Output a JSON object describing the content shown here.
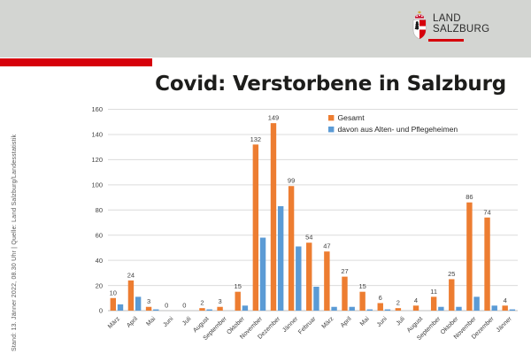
{
  "header": {
    "logo_line1": "LAND",
    "logo_line2": "SALZBURG",
    "band_color": "#d3d5d2",
    "accent_color": "#d6000b"
  },
  "title": "Covid: Verstorbene in Salzburg",
  "source_note": "Stand: 13. Jänner 2022, 08.30 Uhr | Quelle: Land Salzburg/Landesstatistik",
  "chart_data": {
    "type": "bar",
    "title": "",
    "xlabel": "",
    "ylabel": "",
    "ylim": [
      0,
      160
    ],
    "ytick_step": 20,
    "grid": true,
    "legend_position": "top-right",
    "categories": [
      "März",
      "April",
      "Mai",
      "Juni",
      "Juli",
      "August",
      "September",
      "Oktober",
      "November",
      "Dezember",
      "Jänner",
      "Februar",
      "März",
      "April",
      "Mai",
      "Juni",
      "Juli",
      "August",
      "September",
      "Oktober",
      "November",
      "Dezember",
      "Jänner"
    ],
    "series": [
      {
        "name": "Gesamt",
        "color": "#ED7D31",
        "data_labels": true,
        "values": [
          10,
          24,
          3,
          0,
          0,
          2,
          3,
          15,
          132,
          149,
          99,
          54,
          47,
          27,
          15,
          6,
          2,
          4,
          11,
          25,
          86,
          74,
          4
        ]
      },
      {
        "name": "davon aus Alten- und Pflegeheimen",
        "color": "#5B9BD5",
        "data_labels": false,
        "values": [
          5,
          11,
          1,
          0,
          0,
          1,
          0,
          4,
          58,
          83,
          51,
          19,
          3,
          3,
          1,
          1,
          0,
          0,
          3,
          3,
          11,
          4,
          1
        ]
      }
    ],
    "label_color": "#404040",
    "grid_color": "#dcdcdc",
    "axis_color": "#bfbfbf"
  }
}
